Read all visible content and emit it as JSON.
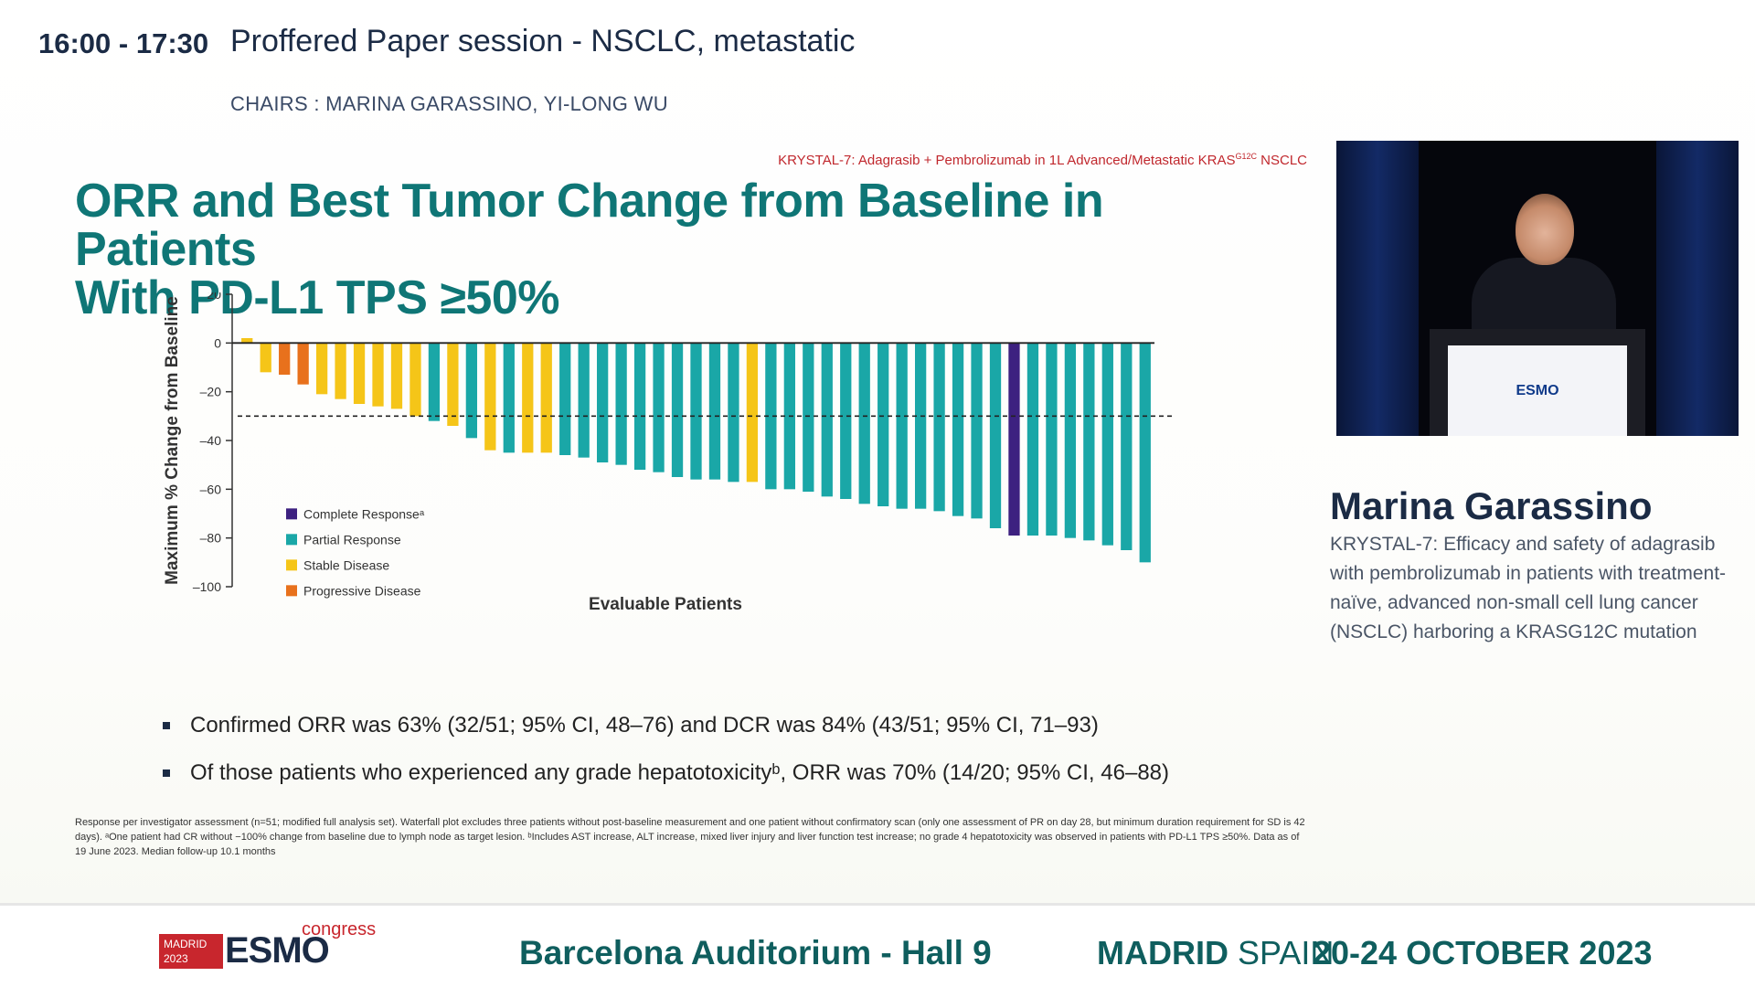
{
  "header": {
    "time": "16:00 - 17:30",
    "title": "Proffered Paper session - NSCLC, metastatic",
    "chairs": "CHAIRS : MARINA GARASSINO, YI-LONG WU"
  },
  "slide": {
    "tag": "KRYSTAL-7: Adagrasib + Pembrolizumab in 1L Advanced/Metastatic KRAS",
    "tag_sup": "G12C",
    "tag_suffix": " NSCLC",
    "title_line1": "ORR and Best Tumor Change from Baseline in Patients",
    "title_line2": "With PD-L1 TPS ≥50%",
    "bullets": [
      "Confirmed ORR was 63% (32/51; 95% CI, 48–76) and DCR was 84% (43/51; 95% CI, 71–93)",
      "Of those patients who experienced any grade hepatotoxicityᵇ, ORR was 70% (14/20; 95% CI, 46–88)"
    ],
    "footnote": "Response per investigator assessment (n=51; modified full analysis set). Waterfall plot excludes three patients without post-baseline measurement and one patient without confirmatory scan (only one assessment of PR on day 28, but minimum duration requirement for SD is 42 days). ᵃOne patient had CR without −100% change from baseline due to lymph node as target lesion. ᵇIncludes AST increase, ALT increase, mixed liver injury and liver function test increase; no grade 4 hepatotoxicity was observed in patients with PD-L1 TPS ≥50%. Data as of 19 June 2023. Median follow-up 10.1 months"
  },
  "chart_data": {
    "type": "bar",
    "xlabel": "Evaluable Patients",
    "ylabel": "Maximum % Change from Baseline",
    "ylim": [
      -100,
      20
    ],
    "yticks": [
      20,
      0,
      -20,
      -40,
      -60,
      -80,
      -100
    ],
    "ytick_labels": [
      "20",
      "0",
      "–20",
      "–40",
      "–60",
      "–80",
      "–100"
    ],
    "threshold": -30,
    "legend": [
      {
        "key": "CR",
        "label": "Complete Responseᵃ",
        "color": "#3d2180"
      },
      {
        "key": "PR",
        "label": "Partial Response",
        "color": "#1aa7a7"
      },
      {
        "key": "SD",
        "label": "Stable Disease",
        "color": "#f5c518"
      },
      {
        "key": "PD",
        "label": "Progressive Disease",
        "color": "#e8711c"
      }
    ],
    "values": [
      2,
      -12,
      -13,
      -17,
      -21,
      -23,
      -25,
      -26,
      -27,
      -30,
      -32,
      -34,
      -39,
      -44,
      -45,
      -45,
      -45,
      -46,
      -47,
      -49,
      -50,
      -52,
      -53,
      -55,
      -56,
      -56,
      -57,
      -57,
      -60,
      -60,
      -61,
      -63,
      -64,
      -66,
      -67,
      -68,
      -68,
      -69,
      -71,
      -72,
      -76,
      -79,
      -79,
      -79,
      -80,
      -81,
      -83,
      -85,
      -90
    ],
    "responses": [
      "SD",
      "SD",
      "PD",
      "PD",
      "SD",
      "SD",
      "SD",
      "SD",
      "SD",
      "SD",
      "PR",
      "SD",
      "PR",
      "SD",
      "PR",
      "SD",
      "SD",
      "PR",
      "PR",
      "PR",
      "PR",
      "PR",
      "PR",
      "PR",
      "PR",
      "PR",
      "PR",
      "SD",
      "PR",
      "PR",
      "PR",
      "PR",
      "PR",
      "PR",
      "PR",
      "PR",
      "PR",
      "PR",
      "PR",
      "PR",
      "PR",
      "CR",
      "PR",
      "PR",
      "PR",
      "PR",
      "PR",
      "PR",
      "PR"
    ]
  },
  "speaker": {
    "name": "Marina Garassino",
    "talk": "KRYSTAL-7: Efficacy and safety of adagrasib with pembrolizumab in patients with treatment-naïve, advanced non-small cell lung cancer (NSCLC) harboring a KRASG12C mutation",
    "podium_logo": "ESMO"
  },
  "footer": {
    "logo_madrid": "MADRID 2023",
    "logo_esmo": "ESMO",
    "logo_congress": "congress",
    "venue": "Barcelona Auditorium - Hall 9",
    "city_bold": "MADRID",
    "city_rest": " SPAIN",
    "dates": "20-24 OCTOBER 2023"
  }
}
